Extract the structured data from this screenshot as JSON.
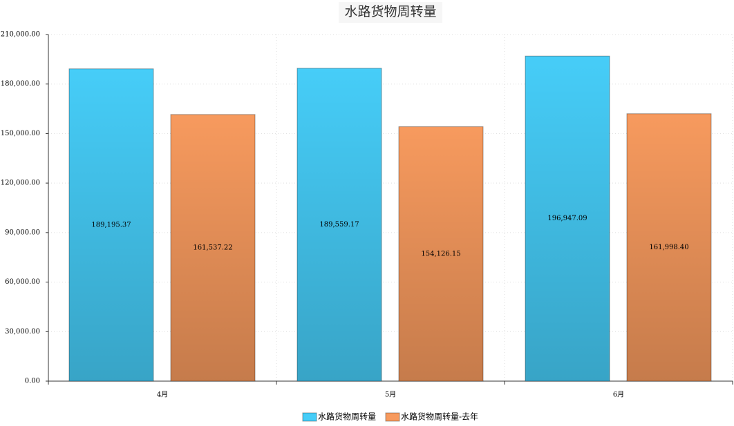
{
  "chart_data": {
    "type": "bar",
    "title": "水路货物周转量",
    "categories": [
      "4月",
      "5月",
      "6月"
    ],
    "series": [
      {
        "name": "水路货物周转量",
        "color": "#46cdf8",
        "values": [
          189195.37,
          189559.17,
          196947.09
        ],
        "value_labels": [
          "189,195.37",
          "189,559.17",
          "196,947.09"
        ]
      },
      {
        "name": "水路货物周转量-去年",
        "color": "#f79a5e",
        "values": [
          161537.22,
          154126.15,
          161998.4
        ],
        "value_labels": [
          "161,537.22",
          "154,126.15",
          "161,998.40"
        ]
      }
    ],
    "ylim": [
      0,
      210000
    ],
    "yticks": [
      {
        "value": 0,
        "label": "0.00"
      },
      {
        "value": 30000,
        "label": "30,000.00"
      },
      {
        "value": 60000,
        "label": "60,000.00"
      },
      {
        "value": 90000,
        "label": "90,000.00"
      },
      {
        "value": 120000,
        "label": "120,000.00"
      },
      {
        "value": 150000,
        "label": "150,000.00"
      },
      {
        "value": 180000,
        "label": "180,000.00"
      },
      {
        "value": 210000,
        "label": "210,000.00"
      }
    ],
    "grid": true,
    "legend": "bottom"
  }
}
